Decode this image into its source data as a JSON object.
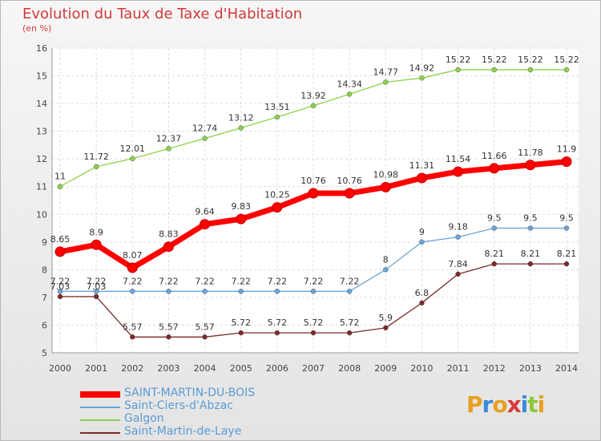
{
  "chart_data": {
    "type": "line",
    "title": "Evolution du Taux de Taxe d'Habitation",
    "subtitle": "(en %)",
    "x": [
      "2000",
      "2001",
      "2002",
      "2003",
      "2004",
      "2005",
      "2006",
      "2007",
      "2008",
      "2009",
      "2010",
      "2011",
      "2012",
      "2013",
      "2014"
    ],
    "ylim": [
      5,
      16
    ],
    "yticks": [
      "5",
      "6",
      "7",
      "8",
      "9",
      "10",
      "11",
      "12",
      "13",
      "14",
      "15",
      "16"
    ],
    "grid": true,
    "legend_position": "bottom-left",
    "series": [
      {
        "name": "SAINT-MARTIN-DU-BOIS",
        "color": "#ff0000",
        "values": [
          8.65,
          8.9,
          8.07,
          8.83,
          9.64,
          9.83,
          10.25,
          10.76,
          10.76,
          10.98,
          11.31,
          11.54,
          11.66,
          11.78,
          11.9
        ],
        "labels": [
          "8.65",
          "8.9",
          "8.07",
          "8.83",
          "9.64",
          "9.83",
          "10.25",
          "10.76",
          "10.76",
          "10.98",
          "11.31",
          "11.54",
          "11.66",
          "11.78",
          "11.9"
        ]
      },
      {
        "name": "Saint-Ciers-d'Abzac",
        "color": "#6aa5d8",
        "values": [
          7.22,
          7.22,
          7.22,
          7.22,
          7.22,
          7.22,
          7.22,
          7.22,
          7.22,
          8,
          9,
          9.18,
          9.5,
          9.5,
          9.5
        ],
        "labels": [
          "7.22",
          "7.22",
          "7.22",
          "7.22",
          "7.22",
          "7.22",
          "7.22",
          "7.22",
          "7.22",
          "8",
          "9",
          "9.18",
          "9.5",
          "9.5",
          "9.5"
        ]
      },
      {
        "name": "Galgon",
        "color": "#8cd24a",
        "values": [
          11,
          11.72,
          12.01,
          12.37,
          12.74,
          13.12,
          13.51,
          13.92,
          14.34,
          14.77,
          14.92,
          15.22,
          15.22,
          15.22,
          15.22
        ],
        "labels": [
          "11",
          "11.72",
          "12.01",
          "12.37",
          "12.74",
          "13.12",
          "13.51",
          "13.92",
          "14.34",
          "14.77",
          "14.92",
          "15.22",
          "15.22",
          "15.22",
          "15.22"
        ]
      },
      {
        "name": "Saint-Martin-de-Laye",
        "color": "#7a2a2a",
        "values": [
          7.03,
          7.03,
          5.57,
          5.57,
          5.57,
          5.72,
          5.72,
          5.72,
          5.72,
          5.9,
          6.8,
          7.84,
          8.21,
          8.21,
          8.21
        ],
        "labels": [
          "7.03",
          "7.03",
          "5.57",
          "5.57",
          "5.57",
          "5.72",
          "5.72",
          "5.72",
          "5.72",
          "5.9",
          "6.8",
          "7.84",
          "8.21",
          "8.21",
          "8.21"
        ]
      }
    ]
  },
  "logo": {
    "text": "Proxiti"
  }
}
